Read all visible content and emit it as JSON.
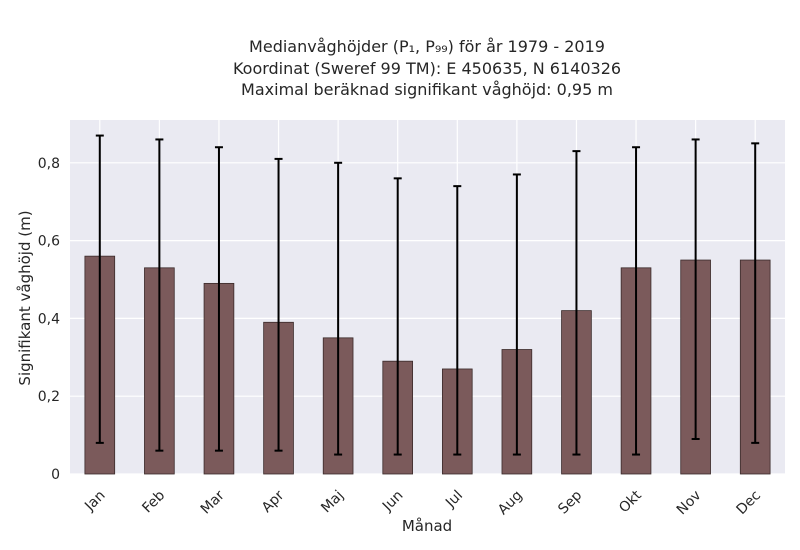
{
  "chart_data": {
    "type": "bar",
    "title_lines": [
      "Medianvåghöjder (P₁, P₉₉) för år 1979 - 2019",
      "Koordinat (Sweref 99 TM): E 450635, N 6140326",
      "Maximal beräknad signifikant våghöjd: 0,95 m"
    ],
    "xlabel": "Månad",
    "ylabel": "Signifikant våghöjd (m)",
    "categories": [
      "Jan",
      "Feb",
      "Mar",
      "Apr",
      "Maj",
      "Jun",
      "Jul",
      "Aug",
      "Sep",
      "Okt",
      "Nov",
      "Dec"
    ],
    "values": [
      0.56,
      0.53,
      0.49,
      0.39,
      0.35,
      0.29,
      0.27,
      0.32,
      0.42,
      0.53,
      0.55,
      0.55
    ],
    "p1": [
      0.08,
      0.06,
      0.06,
      0.06,
      0.05,
      0.05,
      0.05,
      0.05,
      0.05,
      0.05,
      0.09,
      0.08
    ],
    "p99": [
      0.87,
      0.86,
      0.84,
      0.81,
      0.8,
      0.76,
      0.74,
      0.77,
      0.83,
      0.84,
      0.86,
      0.85
    ],
    "ylim": [
      0,
      0.91
    ],
    "yticks": [
      0,
      0.2,
      0.4,
      0.6,
      0.8
    ],
    "ytick_labels": [
      "0",
      "0,2",
      "0,4",
      "0,6",
      "0,8"
    ],
    "grid": true,
    "colors": {
      "bar": "#7b5a5b",
      "bar_edge": "#3a2a2a",
      "plot_bg": "#eaeaf2",
      "grid": "#ffffff",
      "errorbar": "#000000"
    }
  }
}
